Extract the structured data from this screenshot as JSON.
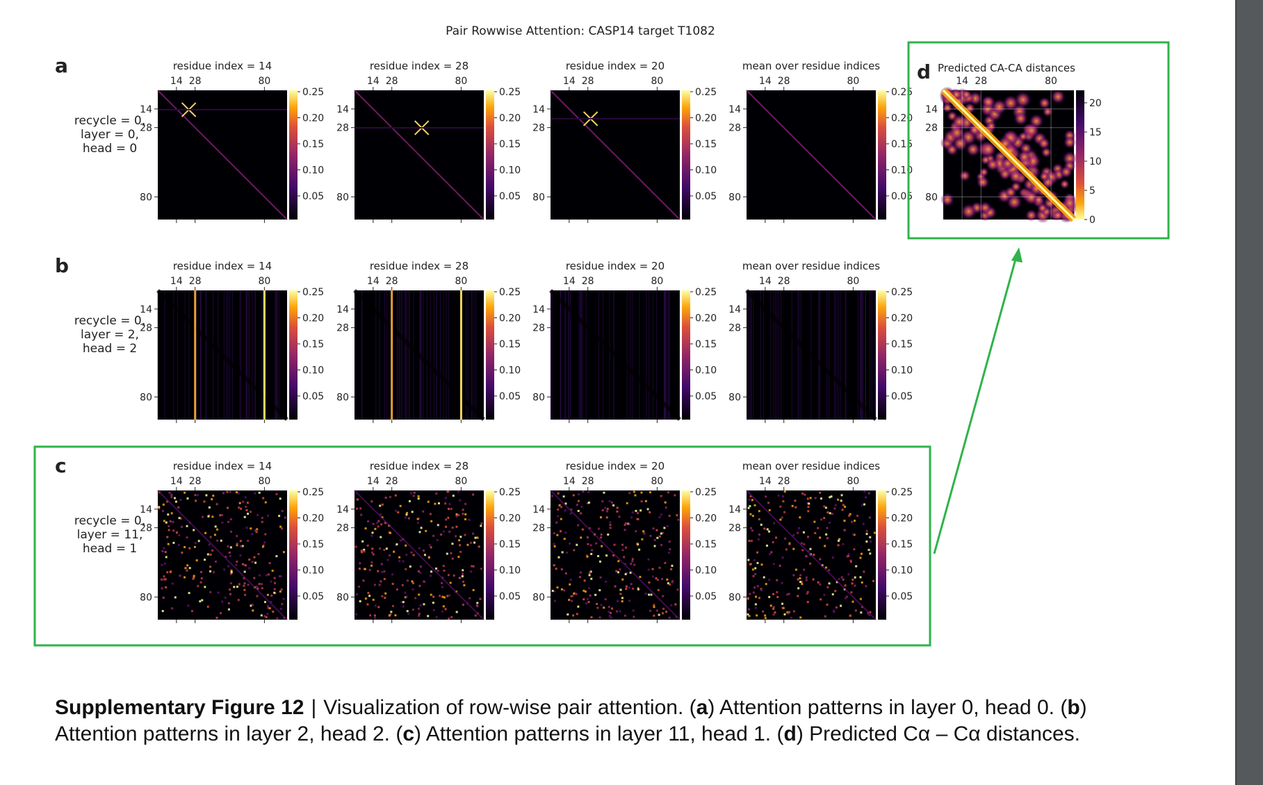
{
  "title": "Pair Rowwise Attention: CASP14 target T1082",
  "rows": [
    {
      "label": "a",
      "desc": [
        "recycle = 0,",
        "layer = 0,",
        "head = 0"
      ],
      "pattern": "cross"
    },
    {
      "label": "b",
      "desc": [
        "recycle = 0,",
        "layer = 2,",
        "head = 2"
      ],
      "pattern": "stripe"
    },
    {
      "label": "c",
      "desc": [
        "recycle = 0,",
        "layer = 11,",
        "head = 1"
      ],
      "pattern": "scatter"
    }
  ],
  "panel_titles": [
    "residue index = 14",
    "residue index = 28",
    "residue index = 20",
    "mean over residue indices"
  ],
  "axis_ticks": [
    "14",
    "28",
    "80"
  ],
  "colorbar_ticks": [
    "0.25",
    "0.20",
    "0.15",
    "0.10",
    "0.05"
  ],
  "panel_d": {
    "label": "d",
    "title": "Predicted CA-CA distances",
    "colorbar_ticks": [
      "20",
      "15",
      "10",
      "5",
      "0"
    ]
  },
  "highlight_color": "#2fb34a",
  "caption": {
    "figure_label": "Supplementary Figure 12",
    "separator": "|",
    "text_intro": "Visualization of row-wise pair attention.",
    "parts": [
      {
        "open": "(",
        "letter": "a",
        "close": ")",
        "text": "Attention patterns in layer 0, head 0."
      },
      {
        "open": "(",
        "letter": "b",
        "close": ")",
        "text": "Attention patterns in layer 2, head 2."
      },
      {
        "open": "(",
        "letter": "c",
        "close": ")",
        "text": "Attention patterns in layer 11, head 1."
      },
      {
        "open": "(",
        "letter": "d",
        "close": ")",
        "text": "Predicted Cα – Cα distances."
      }
    ]
  }
}
